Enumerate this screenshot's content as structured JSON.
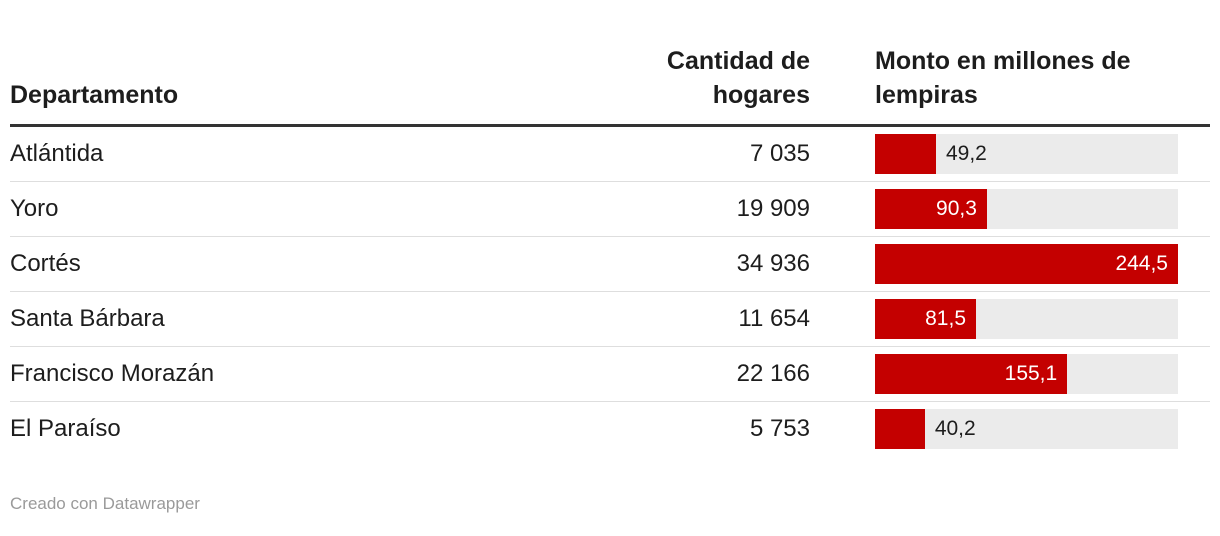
{
  "header": {
    "col_department": "Departamento",
    "col_households": "Cantidad de hogares",
    "col_amount": "Monto en millones de lempiras"
  },
  "rows": [
    {
      "department": "Atlántida",
      "households": "7 035",
      "amount": "49,2",
      "amount_value": 49.2,
      "label_inside": false
    },
    {
      "department": "Yoro",
      "households": "19 909",
      "amount": "90,3",
      "amount_value": 90.3,
      "label_inside": true
    },
    {
      "department": "Cortés",
      "households": "34 936",
      "amount": "244,5",
      "amount_value": 244.5,
      "label_inside": true
    },
    {
      "department": "Santa Bárbara",
      "households": "11 654",
      "amount": "81,5",
      "amount_value": 81.5,
      "label_inside": true
    },
    {
      "department": "Francisco Morazán",
      "households": "22 166",
      "amount": "155,1",
      "amount_value": 155.1,
      "label_inside": true
    },
    {
      "department": "El Paraíso",
      "households": "5 753",
      "amount": "40,2",
      "amount_value": 40.2,
      "label_inside": false
    }
  ],
  "chart_data": {
    "type": "bar",
    "categories": [
      "Atlántida",
      "Yoro",
      "Cortés",
      "Santa Bárbara",
      "Francisco Morazán",
      "El Paraíso"
    ],
    "series": [
      {
        "name": "Cantidad de hogares",
        "values": [
          7035,
          19909,
          34936,
          11654,
          22166,
          5753
        ]
      },
      {
        "name": "Monto en millones de lempiras",
        "values": [
          49.2,
          90.3,
          244.5,
          81.5,
          155.1,
          40.2
        ]
      }
    ],
    "title": "",
    "xlabel": "Departamento",
    "ylabel": "Monto en millones de lempiras",
    "bar_axis_max": 244.5,
    "orientation": "horizontal",
    "bar_color": "#c40000",
    "track_color": "#ebebeb",
    "value_decimal_separator": ","
  },
  "footer": {
    "attribution": "Creado con Datawrapper"
  }
}
